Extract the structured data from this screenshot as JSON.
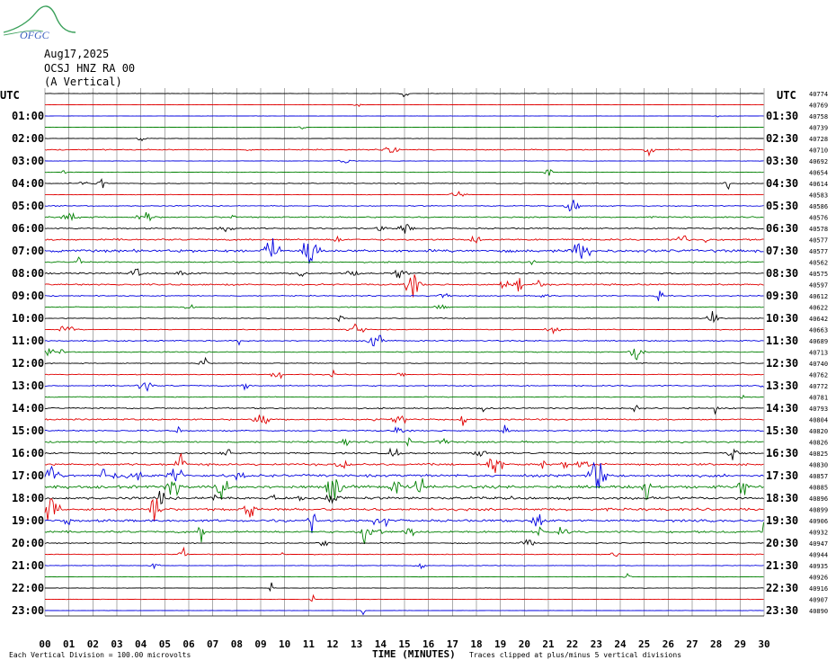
{
  "logo": {
    "text": "OFGC",
    "colors": {
      "swoosh": "#3aa05a",
      "text": "#3a5fbf"
    }
  },
  "header": {
    "date": "Aug17,2025",
    "station": "OCSJ HNZ RA 00",
    "component": "(A Vertical)"
  },
  "utc_left": "UTC",
  "utc_right": "UTC",
  "footer": {
    "division": "Each Vertical Division =  100.00 microvolts",
    "xlabel": "TIME (MINUTES)",
    "clip_note": "Traces clipped at plus/minus 5 vertical divisions"
  },
  "chart_data": {
    "type": "line",
    "title": "",
    "xlabel": "TIME (MINUTES)",
    "x_ticks": [
      "00",
      "01",
      "02",
      "03",
      "04",
      "05",
      "06",
      "07",
      "08",
      "09",
      "10",
      "11",
      "12",
      "13",
      "14",
      "15",
      "16",
      "17",
      "18",
      "19",
      "20",
      "21",
      "22",
      "23",
      "24",
      "25",
      "26",
      "27",
      "28",
      "29",
      "30"
    ],
    "xlim": [
      0,
      30
    ],
    "grid": true,
    "trace_colors": [
      "#000000",
      "#e00000",
      "#0000e0",
      "#008000"
    ],
    "left_labels": [
      "",
      "01:00",
      "02:00",
      "03:00",
      "04:00",
      "05:00",
      "06:00",
      "07:00",
      "08:00",
      "09:00",
      "10:00",
      "11:00",
      "12:00",
      "13:00",
      "14:00",
      "15:00",
      "16:00",
      "17:00",
      "18:00",
      "19:00",
      "20:00",
      "21:00",
      "22:00",
      "23:00"
    ],
    "right_labels": [
      "",
      "01:30",
      "02:30",
      "03:30",
      "04:30",
      "05:30",
      "06:30",
      "07:30",
      "08:30",
      "09:30",
      "10:30",
      "11:30",
      "12:30",
      "13:30",
      "14:30",
      "15:30",
      "16:30",
      "17:30",
      "18:30",
      "19:30",
      "20:30",
      "21:30",
      "22:30",
      "23:30"
    ],
    "trace_offsets": [
      "40774",
      "40769",
      "40758",
      "40739",
      "40728",
      "40710",
      "40692",
      "40654",
      "40614",
      "40583",
      "40586",
      "40576",
      "40578",
      "40577",
      "40577",
      "40562",
      "40575",
      "40597",
      "40612",
      "40622",
      "40642",
      "40663",
      "40689",
      "40713",
      "40740",
      "40762",
      "40772",
      "40781",
      "40793",
      "40804",
      "40820",
      "40826",
      "40825",
      "40830",
      "40857",
      "40885",
      "40896",
      "40899",
      "40906",
      "40932",
      "40947",
      "40944",
      "40935",
      "40926",
      "40916",
      "40907",
      "40890"
    ],
    "activity": [
      0.25,
      0.2,
      0.2,
      0.2,
      0.3,
      0.6,
      0.3,
      0.4,
      0.5,
      0.3,
      0.6,
      0.8,
      0.8,
      1.0,
      1.6,
      0.8,
      0.9,
      1.0,
      0.6,
      0.5,
      0.5,
      0.5,
      0.7,
      0.6,
      0.5,
      0.5,
      0.7,
      0.5,
      0.8,
      0.9,
      0.8,
      1.0,
      0.9,
      1.2,
      1.5,
      1.7,
      1.5,
      1.5,
      1.4,
      1.2,
      0.6,
      0.5,
      0.4,
      0.3,
      0.3,
      0.3,
      0.2
    ]
  }
}
